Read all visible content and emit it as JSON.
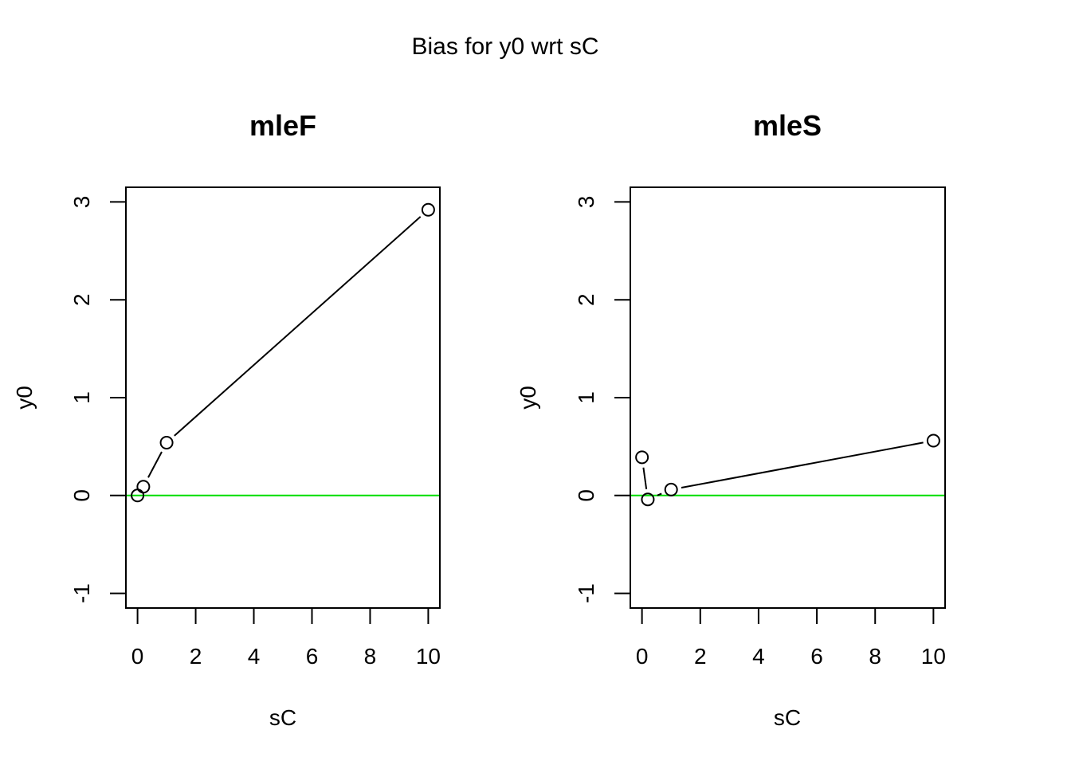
{
  "figure": {
    "title": "Bias for y0 wrt sC"
  },
  "chart_data": [
    {
      "type": "line",
      "title": "mleF",
      "xlabel": "sC",
      "ylabel": "y0",
      "xlim": [
        -0.4,
        10.4
      ],
      "ylim": [
        -1.15,
        3.15
      ],
      "xticks": [
        0,
        2,
        4,
        6,
        8,
        10
      ],
      "yticks": [
        -1,
        0,
        1,
        2,
        3
      ],
      "xtick_labels": [
        "0",
        "2",
        "4",
        "6",
        "8",
        "10"
      ],
      "ytick_labels": [
        "-1",
        "0",
        "1",
        "2",
        "3"
      ],
      "grid": false,
      "series": [
        {
          "x": [
            0,
            0.2,
            1,
            10
          ],
          "values": [
            0.0,
            0.09,
            0.54,
            2.92
          ],
          "marker": "open-circle",
          "color": "#000000"
        }
      ],
      "reference_line": {
        "y": 0,
        "color": "#00dd00"
      }
    },
    {
      "type": "line",
      "title": "mleS",
      "xlabel": "sC",
      "ylabel": "y0",
      "xlim": [
        -0.4,
        10.4
      ],
      "ylim": [
        -1.15,
        3.15
      ],
      "xticks": [
        0,
        2,
        4,
        6,
        8,
        10
      ],
      "yticks": [
        -1,
        0,
        1,
        2,
        3
      ],
      "xtick_labels": [
        "0",
        "2",
        "4",
        "6",
        "8",
        "10"
      ],
      "ytick_labels": [
        "-1",
        "0",
        "1",
        "2",
        "3"
      ],
      "grid": false,
      "series": [
        {
          "x": [
            0,
            0.2,
            1,
            10
          ],
          "values": [
            0.39,
            -0.04,
            0.06,
            0.56
          ],
          "marker": "open-circle",
          "color": "#000000"
        }
      ],
      "reference_line": {
        "y": 0,
        "color": "#00dd00"
      }
    }
  ]
}
